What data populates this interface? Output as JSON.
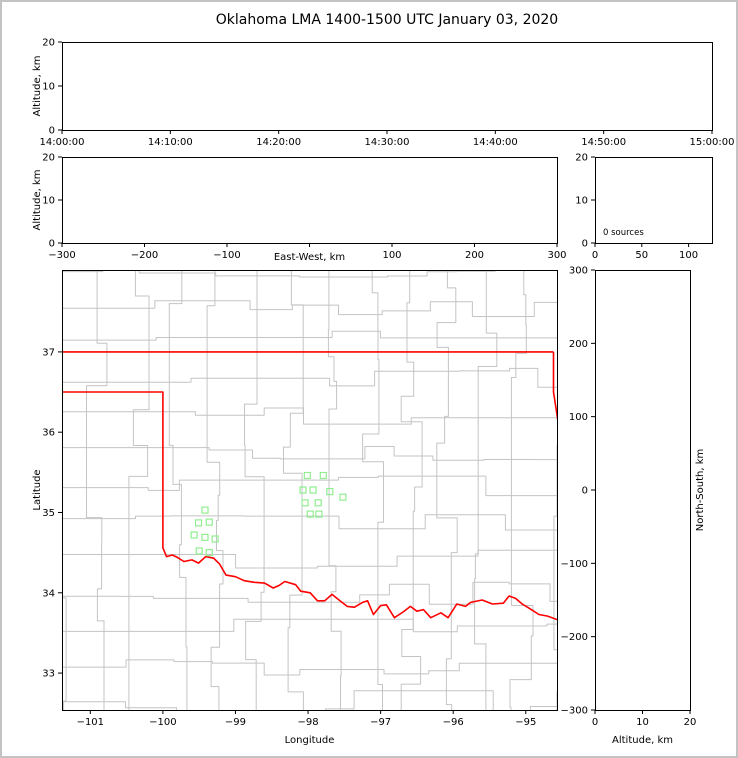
{
  "title": "Oklahoma LMA 1400-1500 UTC January 03, 2020",
  "style": {
    "background": "#ffffff",
    "frame_border_color": "#c3c3c3",
    "axis_color": "#000000",
    "county_line_color": "#c4c4c4",
    "state_border_color": "#ff0000",
    "source_marker_color": "#90ee90"
  },
  "chart_data": [
    {
      "id": "time_height",
      "type": "scatter",
      "ylabel": "Altitude, km",
      "xlim": [
        0,
        6
      ],
      "xticks": [
        0,
        1,
        2,
        3,
        4,
        5,
        6
      ],
      "xticklabels": [
        "14:00:00",
        "14:10:00",
        "14:20:00",
        "14:30:00",
        "14:40:00",
        "14:50:00",
        "15:00:00"
      ],
      "ylim": [
        0,
        20
      ],
      "yticks": [
        0,
        10,
        20
      ],
      "yticklabels": [
        "0",
        "10",
        "20"
      ],
      "points": []
    },
    {
      "id": "ew_altitude",
      "type": "scatter",
      "xlabel": "East-West, km",
      "ylabel": "Altitude, km",
      "xlim": [
        -300,
        300
      ],
      "xticks": [
        -300,
        -200,
        -100,
        0,
        100,
        200,
        300
      ],
      "xticklabels": [
        "−300",
        "−200",
        "−100",
        "",
        "100",
        "200",
        "300"
      ],
      "ylim": [
        0,
        20
      ],
      "yticks": [
        0,
        10,
        20
      ],
      "yticklabels": [
        "0",
        "10",
        "20"
      ],
      "points": []
    },
    {
      "id": "alt_histogram",
      "type": "line",
      "annotation": "0 sources",
      "xlim": [
        0,
        125
      ],
      "xticks": [
        0,
        50,
        100
      ],
      "xticklabels": [
        "0",
        "50",
        "100"
      ],
      "ylim": [
        0,
        20
      ],
      "yticks": [
        0,
        10,
        20
      ],
      "yticklabels": [
        "0",
        "10",
        "20"
      ],
      "points": []
    },
    {
      "id": "plan_view",
      "type": "scatter",
      "xlabel": "Longitude",
      "ylabel": "Latitude",
      "xlim": [
        -101.39,
        -94.57
      ],
      "xticks": [
        -101,
        -100,
        -99,
        -98,
        -97,
        -96,
        -95
      ],
      "xticklabels": [
        "−101",
        "−100",
        "−99",
        "−98",
        "−97",
        "−96",
        "−95"
      ],
      "ylim": [
        32.54,
        38.02
      ],
      "yticks": [
        33,
        34,
        35,
        36,
        37
      ],
      "yticklabels": [
        "33",
        "34",
        "35",
        "36",
        "37"
      ],
      "sources_lon_lat": [
        [
          -98.01,
          35.46
        ],
        [
          -97.79,
          35.46
        ],
        [
          -98.07,
          35.28
        ],
        [
          -97.93,
          35.28
        ],
        [
          -97.7,
          35.26
        ],
        [
          -98.04,
          35.12
        ],
        [
          -97.86,
          35.12
        ],
        [
          -97.52,
          35.19
        ],
        [
          -97.97,
          34.98
        ],
        [
          -97.85,
          34.98
        ],
        [
          -99.42,
          35.03
        ],
        [
          -99.51,
          34.87
        ],
        [
          -99.36,
          34.88
        ],
        [
          -99.57,
          34.72
        ],
        [
          -99.42,
          34.69
        ],
        [
          -99.28,
          34.67
        ],
        [
          -99.5,
          34.52
        ],
        [
          -99.36,
          34.5
        ]
      ],
      "state_border": [
        [
          [
            -101.39,
            37.0
          ],
          [
            -94.618,
            37.0
          ]
        ],
        [
          [
            -94.618,
            37.0
          ],
          [
            -94.618,
            36.5
          ],
          [
            -94.431,
            35.394
          ],
          [
            -94.486,
            33.637
          ]
        ],
        [
          [
            -101.39,
            36.5
          ],
          [
            -100.0,
            36.5
          ],
          [
            -100.0,
            34.56
          ],
          [
            -99.95,
            34.45
          ],
          [
            -99.87,
            34.47
          ],
          [
            -99.8,
            34.44
          ],
          [
            -99.71,
            34.39
          ],
          [
            -99.6,
            34.41
          ],
          [
            -99.51,
            34.37
          ],
          [
            -99.41,
            34.45
          ],
          [
            -99.3,
            34.43
          ],
          [
            -99.22,
            34.36
          ],
          [
            -99.13,
            34.22
          ],
          [
            -99.0,
            34.2
          ],
          [
            -98.88,
            34.15
          ],
          [
            -98.74,
            34.13
          ],
          [
            -98.6,
            34.12
          ],
          [
            -98.48,
            34.06
          ],
          [
            -98.4,
            34.09
          ],
          [
            -98.32,
            34.14
          ],
          [
            -98.17,
            34.1
          ],
          [
            -98.1,
            34.02
          ],
          [
            -97.97,
            34.0
          ],
          [
            -97.87,
            33.9
          ],
          [
            -97.77,
            33.9
          ],
          [
            -97.67,
            33.98
          ],
          [
            -97.56,
            33.9
          ],
          [
            -97.46,
            33.83
          ],
          [
            -97.36,
            33.82
          ],
          [
            -97.25,
            33.88
          ],
          [
            -97.18,
            33.9
          ],
          [
            -97.1,
            33.73
          ],
          [
            -97.0,
            33.84
          ],
          [
            -96.92,
            33.85
          ],
          [
            -96.81,
            33.69
          ],
          [
            -96.69,
            33.76
          ],
          [
            -96.59,
            33.83
          ],
          [
            -96.5,
            33.77
          ],
          [
            -96.41,
            33.79
          ],
          [
            -96.31,
            33.69
          ],
          [
            -96.17,
            33.75
          ],
          [
            -96.07,
            33.69
          ],
          [
            -95.95,
            33.86
          ],
          [
            -95.83,
            33.83
          ],
          [
            -95.76,
            33.88
          ],
          [
            -95.6,
            33.91
          ],
          [
            -95.46,
            33.86
          ],
          [
            -95.31,
            33.87
          ],
          [
            -95.23,
            33.96
          ],
          [
            -95.14,
            33.93
          ],
          [
            -95.05,
            33.86
          ],
          [
            -94.94,
            33.8
          ],
          [
            -94.82,
            33.73
          ],
          [
            -94.7,
            33.71
          ],
          [
            -94.55,
            33.66
          ]
        ]
      ],
      "county_grid": {
        "seed": 11,
        "lon_min": -101.45,
        "lon_max": -94.3,
        "lat_min": 32.4,
        "lat_max": 38.1,
        "lon_step": 0.54,
        "lat_step": 0.44
      }
    },
    {
      "id": "ns_altitude",
      "type": "scatter",
      "xlabel": "Altitude, km",
      "ylabel": "North-South, km",
      "xlim": [
        0,
        20
      ],
      "xticks": [
        0,
        10,
        20
      ],
      "xticklabels": [
        "0",
        "10",
        "20"
      ],
      "ylim": [
        -300,
        300
      ],
      "yticks": [
        -300,
        -200,
        -100,
        0,
        100,
        200,
        300
      ],
      "yticklabels": [
        "−300",
        "−200",
        "−100",
        "0",
        "100",
        "200",
        "300"
      ],
      "points": []
    }
  ]
}
